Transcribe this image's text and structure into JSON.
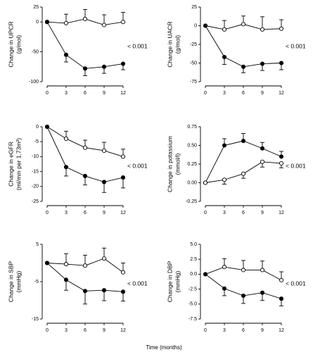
{
  "x_label": "Time (months)",
  "chart_data": [
    {
      "type": "line",
      "ylabel": [
        "Change in UPCR",
        "(g/mol)"
      ],
      "annotation": "< 0.001",
      "x": [
        0,
        3,
        6,
        9,
        12
      ],
      "xlim": [
        0,
        12
      ],
      "xticks": [
        0,
        3,
        6,
        9,
        12
      ],
      "ylim": [
        -100,
        25
      ],
      "yticks": [
        25,
        0,
        -50,
        -100
      ],
      "series": [
        {
          "color": "#ffffff",
          "values": [
            0,
            -2,
            5,
            -5,
            0
          ],
          "errors": [
            0,
            15,
            16,
            17,
            16
          ],
          "error_direction": "up"
        },
        {
          "color": "#000000",
          "values": [
            0,
            -55,
            -78,
            -75,
            -70
          ],
          "errors": [
            0,
            12,
            12,
            11,
            10
          ],
          "error_direction": "down"
        }
      ]
    },
    {
      "type": "line",
      "ylabel": [
        "Change in UACR",
        "(g/mol)"
      ],
      "annotation": "< 0.001",
      "x": [
        0,
        3,
        6,
        9,
        12
      ],
      "xlim": [
        0,
        12
      ],
      "xticks": [
        0,
        3,
        6,
        9,
        12
      ],
      "ylim": [
        -75,
        25
      ],
      "yticks": [
        25,
        0,
        -25,
        -50,
        -75
      ],
      "series": [
        {
          "color": "#ffffff",
          "values": [
            0,
            -5,
            2,
            -5,
            -4
          ],
          "errors": [
            0,
            12,
            11,
            17,
            12
          ],
          "error_direction": "up"
        },
        {
          "color": "#000000",
          "values": [
            0,
            -42,
            -55,
            -51,
            -50
          ],
          "errors": [
            0,
            10,
            8,
            9,
            9
          ],
          "error_direction": "down"
        }
      ]
    },
    {
      "type": "line",
      "ylabel": [
        "Change in eGFR",
        "(ml/min per 1.73m²)"
      ],
      "annotation": "< 0.001",
      "x": [
        0,
        3,
        6,
        9,
        12
      ],
      "xlim": [
        0,
        12
      ],
      "xticks": [
        0,
        3,
        6,
        9,
        12
      ],
      "ylim": [
        -25,
        0
      ],
      "yticks": [
        0,
        -5,
        -10,
        -15,
        -20,
        -25
      ],
      "series": [
        {
          "color": "#ffffff",
          "values": [
            0,
            -4,
            -7,
            -8,
            -10
          ],
          "errors": [
            0,
            2.5,
            2.5,
            2.8,
            2.5
          ],
          "error_direction": "up"
        },
        {
          "color": "#000000",
          "values": [
            0,
            -13.5,
            -16.5,
            -18.5,
            -17
          ],
          "errors": [
            0,
            3,
            3,
            3.5,
            3.5
          ],
          "error_direction": "down"
        }
      ]
    },
    {
      "type": "line",
      "ylabel": [
        "Change in potassium",
        "(mmol/l)"
      ],
      "annotation": "< 0.001",
      "x": [
        0,
        3,
        6,
        9,
        12
      ],
      "xlim": [
        0,
        12
      ],
      "xticks": [
        0,
        3,
        6,
        9,
        12
      ],
      "ylim": [
        -0.25,
        0.75
      ],
      "yticks": [
        {
          "value": 0.75,
          "label": "0.75"
        },
        {
          "value": 0.5,
          "label": "0.50"
        },
        {
          "value": 0.25,
          "label": "0.25"
        },
        {
          "value": 0,
          "label": "0.00"
        },
        {
          "value": -0.25,
          "label": "-0.25"
        }
      ],
      "series": [
        {
          "color": "#000000",
          "values": [
            0,
            0.5,
            0.56,
            0.46,
            0.35
          ],
          "errors": [
            0,
            0.09,
            0.1,
            0.08,
            0.07
          ],
          "error_direction": "up"
        },
        {
          "color": "#ffffff",
          "values": [
            0,
            0.04,
            0.12,
            0.28,
            0.26
          ],
          "errors": [
            0,
            0.06,
            0.06,
            0.07,
            0.06
          ],
          "error_direction": "down"
        }
      ]
    },
    {
      "type": "line",
      "ylabel": [
        "Change in SBP",
        "(mmHg)"
      ],
      "annotation": "< 0.001",
      "x": [
        0,
        3,
        6,
        9,
        12
      ],
      "xlim": [
        0,
        12
      ],
      "xticks": [
        0,
        3,
        6,
        9,
        12
      ],
      "ylim": [
        -15,
        5
      ],
      "yticks": [
        5,
        -5,
        -15
      ],
      "series": [
        {
          "color": "#ffffff",
          "values": [
            0,
            -0.3,
            -0.7,
            1.2,
            -2.5
          ],
          "errors": [
            0,
            2.8,
            2.8,
            2.8,
            2.5
          ],
          "error_direction": "up"
        },
        {
          "color": "#000000",
          "values": [
            0,
            -4.5,
            -7.5,
            -7.3,
            -7.7
          ],
          "errors": [
            0,
            2.8,
            3.5,
            2.8,
            2.5
          ],
          "error_direction": "down"
        }
      ]
    },
    {
      "type": "line",
      "ylabel": [
        "Change in DBP",
        "(mmHg)"
      ],
      "annotation": "< 0.001",
      "x": [
        0,
        3,
        6,
        9,
        12
      ],
      "xlim": [
        0,
        12
      ],
      "xticks": [
        0,
        3,
        6,
        9,
        12
      ],
      "ylim": [
        -7.5,
        5
      ],
      "yticks": [
        {
          "value": 5,
          "label": "5.0"
        },
        {
          "value": 2.5,
          "label": "2.5"
        },
        {
          "value": 0,
          "label": "0.0"
        },
        {
          "value": -2.5,
          "label": "-2.5"
        },
        {
          "value": -5,
          "label": "-5.0"
        },
        {
          "value": -7.5,
          "label": "-7.5"
        }
      ],
      "series": [
        {
          "color": "#ffffff",
          "values": [
            0,
            1.2,
            0.7,
            0.7,
            -1
          ],
          "errors": [
            0,
            1.4,
            1.6,
            1.5,
            1.4
          ],
          "error_direction": "up"
        },
        {
          "color": "#000000",
          "values": [
            0,
            -2.4,
            -3.6,
            -3.1,
            -4.1
          ],
          "errors": [
            0,
            1.2,
            1.3,
            1.3,
            1.2
          ],
          "error_direction": "down"
        }
      ]
    }
  ]
}
